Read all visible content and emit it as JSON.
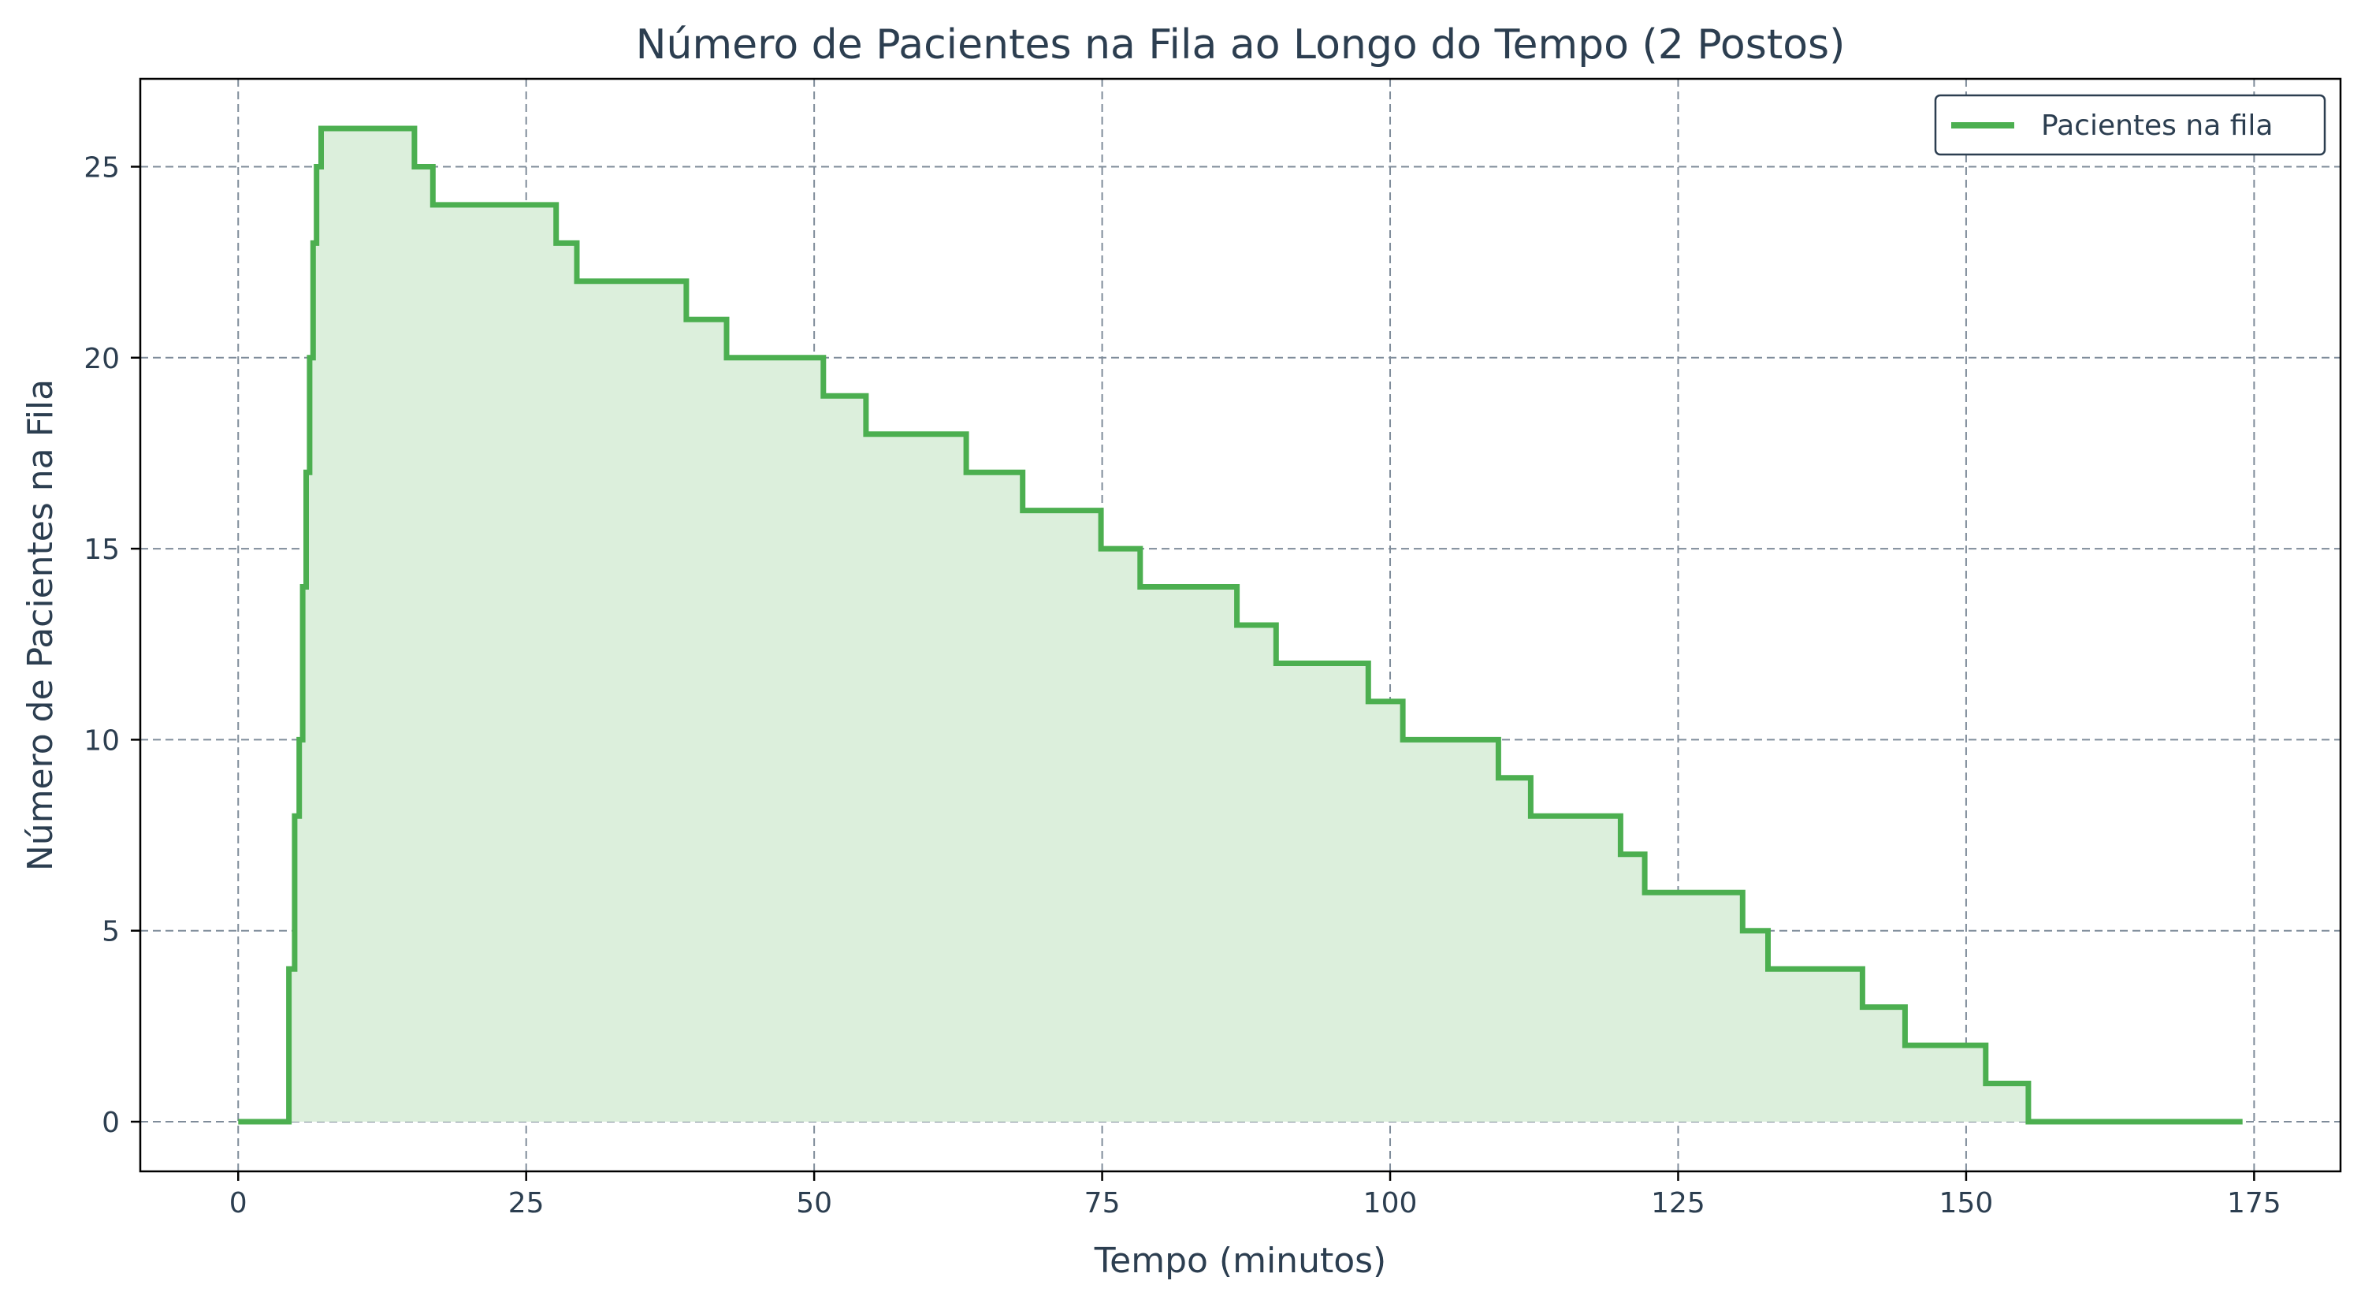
{
  "chart_data": {
    "type": "line",
    "title": "Número de Pacientes na Fila ao Longo do Tempo (2 Postos)",
    "xlabel": "Tempo (minutos)",
    "ylabel": "Número de Pacientes na Fila",
    "xlim": [
      -8.5,
      182.5
    ],
    "ylim": [
      -1.3,
      27.3
    ],
    "xticks": [
      0,
      25,
      50,
      75,
      100,
      125,
      150,
      175
    ],
    "yticks": [
      0,
      5,
      10,
      15,
      20,
      25
    ],
    "grid": true,
    "legend_position": "top-right",
    "step": true,
    "fill_under": true,
    "colors": {
      "line": "#4caf50",
      "fill": "#dcefdc",
      "grid": "#7f8c9a",
      "text": "#2c3e50",
      "legend_border": "#2c3e50"
    },
    "series": [
      {
        "name": "Pacientes na fila",
        "points": [
          [
            0,
            0
          ],
          [
            4.4,
            0
          ],
          [
            4.4,
            4
          ],
          [
            4.9,
            4
          ],
          [
            4.9,
            8
          ],
          [
            5.3,
            8
          ],
          [
            5.3,
            10
          ],
          [
            5.6,
            10
          ],
          [
            5.6,
            14
          ],
          [
            5.9,
            14
          ],
          [
            5.9,
            17
          ],
          [
            6.2,
            17
          ],
          [
            6.2,
            20
          ],
          [
            6.5,
            20
          ],
          [
            6.5,
            23
          ],
          [
            6.8,
            23
          ],
          [
            6.8,
            25
          ],
          [
            7.2,
            25
          ],
          [
            7.2,
            26
          ],
          [
            15.3,
            26
          ],
          [
            15.3,
            25
          ],
          [
            16.9,
            25
          ],
          [
            16.9,
            24
          ],
          [
            27.6,
            24
          ],
          [
            27.6,
            23
          ],
          [
            29.4,
            23
          ],
          [
            29.4,
            22
          ],
          [
            38.9,
            22
          ],
          [
            38.9,
            21
          ],
          [
            42.4,
            21
          ],
          [
            42.4,
            20
          ],
          [
            50.8,
            20
          ],
          [
            50.8,
            19
          ],
          [
            54.5,
            19
          ],
          [
            54.5,
            18
          ],
          [
            63.2,
            18
          ],
          [
            63.2,
            17
          ],
          [
            68.1,
            17
          ],
          [
            68.1,
            16
          ],
          [
            74.9,
            16
          ],
          [
            74.9,
            15
          ],
          [
            78.3,
            15
          ],
          [
            78.3,
            14
          ],
          [
            86.7,
            14
          ],
          [
            86.7,
            13
          ],
          [
            90.1,
            13
          ],
          [
            90.1,
            12
          ],
          [
            98.1,
            12
          ],
          [
            98.1,
            11
          ],
          [
            101.1,
            11
          ],
          [
            101.1,
            10
          ],
          [
            109.4,
            10
          ],
          [
            109.4,
            9
          ],
          [
            112.2,
            9
          ],
          [
            112.2,
            8
          ],
          [
            120.0,
            8
          ],
          [
            120.0,
            7
          ],
          [
            122.1,
            7
          ],
          [
            122.1,
            6
          ],
          [
            130.6,
            6
          ],
          [
            130.6,
            5
          ],
          [
            132.8,
            5
          ],
          [
            132.8,
            4
          ],
          [
            141.0,
            4
          ],
          [
            141.0,
            3
          ],
          [
            144.7,
            3
          ],
          [
            144.7,
            2
          ],
          [
            151.7,
            2
          ],
          [
            151.7,
            1
          ],
          [
            155.4,
            1
          ],
          [
            155.4,
            0
          ],
          [
            174.0,
            0
          ]
        ]
      }
    ]
  }
}
